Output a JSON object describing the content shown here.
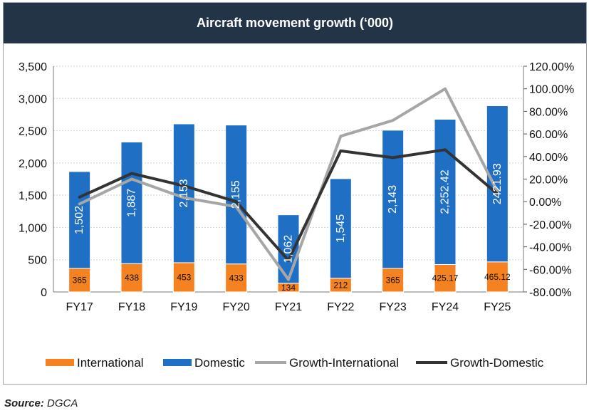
{
  "source": {
    "label": "Source:",
    "text": "DGCA"
  },
  "chart_data": {
    "type": "bar",
    "title": "Aircraft movement growth (‘000)",
    "categories": [
      "FY17",
      "FY18",
      "FY19",
      "FY20",
      "FY21",
      "FY22",
      "FY23",
      "FY24",
      "FY25"
    ],
    "series": [
      {
        "name": "International",
        "type": "stacked-bar",
        "color": "#f58220",
        "values": [
          365,
          438,
          453,
          433,
          134,
          212,
          365,
          425.17,
          465.12
        ],
        "labels": [
          "365",
          "438",
          "453",
          "433",
          "134",
          "212",
          "365",
          "425.17",
          "465.12"
        ]
      },
      {
        "name": "Domestic",
        "type": "stacked-bar",
        "color": "#1f6fc5",
        "values": [
          1502,
          1887,
          2153,
          2155,
          1062,
          1545,
          2143,
          2252.42,
          2421.93
        ],
        "labels": [
          "1,502",
          "1,887",
          "2,153",
          "2,155",
          "1,062",
          "1,545",
          "2,143",
          "2,252.42",
          "2421.93"
        ]
      },
      {
        "name": "Growth-International",
        "type": "line",
        "axis": "right",
        "color": "#a6a6a6",
        "values": [
          -2,
          20,
          3.5,
          -4.5,
          -69,
          58,
          72,
          100,
          9
        ]
      },
      {
        "name": "Growth-Domestic",
        "type": "line",
        "axis": "right",
        "color": "#333333",
        "values": [
          4,
          25,
          14,
          0,
          -52,
          45,
          39,
          46,
          7
        ]
      }
    ],
    "y_left": {
      "min": 0,
      "max": 3500,
      "ticks": [
        0,
        500,
        1000,
        1500,
        2000,
        2500,
        3000,
        3500
      ],
      "tick_labels": [
        "0",
        "500",
        "1,000",
        "1,500",
        "2,000",
        "2,500",
        "3,000",
        "3,500"
      ]
    },
    "y_right": {
      "min": -80,
      "max": 120,
      "ticks": [
        -80,
        -60,
        -40,
        -20,
        0,
        20,
        40,
        60,
        80,
        100,
        120
      ],
      "tick_labels": [
        "-80.00%",
        "-60.00%",
        "-40.00%",
        "-20.00%",
        "0.00%",
        "20.00%",
        "40.00%",
        "60.00%",
        "80.00%",
        "100.00%",
        "120.00%"
      ]
    },
    "grid": true,
    "legend": {
      "position": "bottom",
      "items": [
        "International",
        "Domestic",
        "Growth-International",
        "Growth-Domestic"
      ]
    }
  }
}
